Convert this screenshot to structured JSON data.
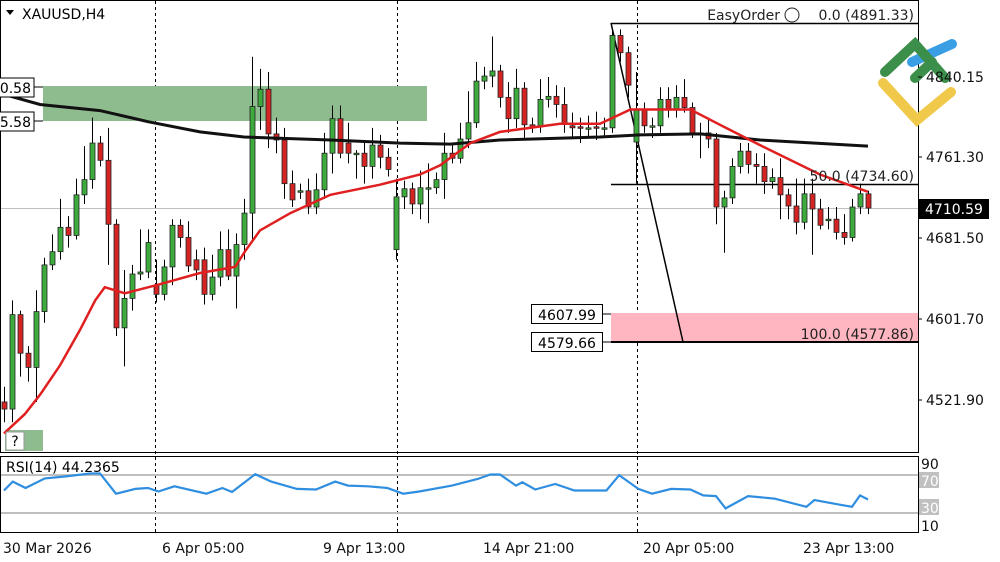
{
  "header": {
    "symbol_timeframe": "XAUUSD,H4",
    "menu_icon": "triangle-down-icon"
  },
  "price_axis": {
    "labels": [
      "4840.15",
      "4761.30",
      "4681.50",
      "4601.70",
      "4521.90"
    ],
    "current_price": "4710.59"
  },
  "time_axis": {
    "labels": [
      "30 Mar 2026",
      "6 Apr 05:00",
      "9 Apr 13:00",
      "14 Apr 21:00",
      "20 Apr 05:00",
      "23 Apr 13:00"
    ]
  },
  "zones": {
    "supply": {
      "top_label": "0.58",
      "bottom_label": "5.58",
      "color": "#8fbc8f"
    },
    "demand": {
      "top_label": "4607.99",
      "bottom_label": "4579.66",
      "color": "#ffb6c1"
    },
    "help_badge": "?"
  },
  "fibonacci": {
    "level_0": "0.0 (4891.33)",
    "level_50": "50.0 (4734.60)",
    "level_100": "100.0 (4577.86)",
    "overlay_text": "EasyOrder"
  },
  "rsi": {
    "title": "RSI(14) 44.2365",
    "scale_labels": [
      "90",
      "70",
      "30",
      "10"
    ]
  },
  "logo": {
    "colors": [
      "#3b8f4a",
      "#3a9ee4",
      "#f0c94a"
    ]
  },
  "colors": {
    "bull": "#3cab3c",
    "bear": "#d62424",
    "ma_fast": "#e02020",
    "ma_slow": "#111111",
    "rsi": "#2f8ee0"
  },
  "chart_data": {
    "type": "candlestick",
    "title": "XAUUSD,H4",
    "ylim": [
      4470.7,
      4915.9
    ],
    "x_tick_labels": [
      "30 Mar 2026",
      "6 Apr 05:00",
      "9 Apr 13:00",
      "14 Apr 21:00",
      "20 Apr 05:00",
      "23 Apr 13:00"
    ],
    "candles": [
      [
        4520,
        4535,
        4500,
        4513
      ],
      [
        4513,
        4620,
        4500,
        4606
      ],
      [
        4606,
        4610,
        4545,
        4568
      ],
      [
        4568,
        4575,
        4540,
        4554
      ],
      [
        4554,
        4630,
        4520,
        4609
      ],
      [
        4609,
        4662,
        4598,
        4655
      ],
      [
        4655,
        4685,
        4650,
        4668
      ],
      [
        4668,
        4720,
        4660,
        4692
      ],
      [
        4692,
        4703,
        4672,
        4684
      ],
      [
        4684,
        4740,
        4680,
        4724
      ],
      [
        4724,
        4772,
        4715,
        4739
      ],
      [
        4739,
        4800,
        4730,
        4775
      ],
      [
        4775,
        4782,
        4752,
        4758
      ],
      [
        4758,
        4790,
        4655,
        4695
      ],
      [
        4695,
        4700,
        4585,
        4593
      ],
      [
        4593,
        4650,
        4555,
        4622
      ],
      [
        4622,
        4655,
        4610,
        4646
      ],
      [
        4646,
        4690,
        4640,
        4648
      ],
      [
        4648,
        4690,
        4642,
        4677
      ],
      [
        4635,
        4660,
        4618,
        4626
      ],
      [
        4626,
        4660,
        4620,
        4653
      ],
      [
        4653,
        4700,
        4635,
        4694
      ],
      [
        4694,
        4700,
        4672,
        4682
      ],
      [
        4682,
        4698,
        4648,
        4654
      ],
      [
        4660,
        4670,
        4640,
        4650
      ],
      [
        4660,
        4672,
        4616,
        4626
      ],
      [
        4626,
        4665,
        4620,
        4643
      ],
      [
        4643,
        4688,
        4634,
        4670
      ],
      [
        4670,
        4690,
        4640,
        4644
      ],
      [
        4644,
        4686,
        4612,
        4675
      ],
      [
        4675,
        4720,
        4660,
        4706
      ],
      [
        4706,
        4860,
        4680,
        4811
      ],
      [
        4811,
        4848,
        4788,
        4828
      ],
      [
        4828,
        4845,
        4770,
        4784
      ],
      [
        4784,
        4800,
        4765,
        4778
      ],
      [
        4778,
        4790,
        4720,
        4735
      ],
      [
        4735,
        4748,
        4712,
        4719
      ],
      [
        4728,
        4735,
        4720,
        4728
      ],
      [
        4728,
        4740,
        4705,
        4712
      ],
      [
        4712,
        4745,
        4705,
        4729
      ],
      [
        4729,
        4785,
        4720,
        4765
      ],
      [
        4765,
        4812,
        4745,
        4799
      ],
      [
        4799,
        4812,
        4760,
        4765
      ],
      [
        4775,
        4795,
        4755,
        4765
      ],
      [
        4765,
        4768,
        4740,
        4765
      ],
      [
        4765,
        4777,
        4735,
        4752
      ],
      [
        4752,
        4790,
        4740,
        4773
      ],
      [
        4773,
        4783,
        4750,
        4761
      ],
      [
        4761,
        4770,
        4742,
        4749
      ],
      [
        4670,
        4740,
        4660,
        4722
      ],
      [
        4722,
        4738,
        4710,
        4730
      ],
      [
        4730,
        4736,
        4705,
        4715
      ],
      [
        4715,
        4748,
        4700,
        4731
      ],
      [
        4731,
        4755,
        4696,
        4731
      ],
      [
        4731,
        4746,
        4725,
        4739
      ],
      [
        4739,
        4785,
        4720,
        4765
      ],
      [
        4765,
        4775,
        4755,
        4760
      ],
      [
        4760,
        4795,
        4755,
        4779
      ],
      [
        4779,
        4826,
        4770,
        4795
      ],
      [
        4795,
        4855,
        4790,
        4836
      ],
      [
        4836,
        4850,
        4828,
        4841
      ],
      [
        4841,
        4880,
        4830,
        4846
      ],
      [
        4846,
        4852,
        4810,
        4820
      ],
      [
        4820,
        4835,
        4785,
        4799
      ],
      [
        4799,
        4848,
        4790,
        4829
      ],
      [
        4829,
        4835,
        4780,
        4793
      ],
      [
        4793,
        4800,
        4785,
        4791
      ],
      [
        4791,
        4838,
        4785,
        4818
      ],
      [
        4818,
        4840,
        4810,
        4821
      ],
      [
        4821,
        4832,
        4800,
        4813
      ],
      [
        4813,
        4830,
        4785,
        4794
      ],
      [
        4792,
        4805,
        4780,
        4790
      ],
      [
        4791,
        4800,
        4775,
        4790
      ],
      [
        4790,
        4802,
        4782,
        4790
      ],
      [
        4791,
        4806,
        4778,
        4790
      ],
      [
        4790,
        4800,
        4782,
        4790
      ],
      [
        4790,
        4885,
        4785,
        4881
      ],
      [
        4881,
        4887,
        4855,
        4864
      ],
      [
        4864,
        4870,
        4820,
        4832
      ],
      [
        4776,
        4845,
        4735,
        4808
      ],
      [
        4808,
        4815,
        4785,
        4792
      ],
      [
        4792,
        4800,
        4780,
        4792
      ],
      [
        4792,
        4830,
        4785,
        4818
      ],
      [
        4818,
        4830,
        4800,
        4808
      ],
      [
        4808,
        4832,
        4800,
        4820
      ],
      [
        4820,
        4838,
        4805,
        4810
      ],
      [
        4810,
        4815,
        4780,
        4785
      ],
      [
        4785,
        4795,
        4760,
        4785
      ],
      [
        4785,
        4800,
        4770,
        4779
      ],
      [
        4779,
        4785,
        4695,
        4712
      ],
      [
        4712,
        4728,
        4667,
        4721
      ],
      [
        4721,
        4760,
        4715,
        4752
      ],
      [
        4752,
        4775,
        4745,
        4767
      ],
      [
        4767,
        4775,
        4745,
        4754
      ],
      [
        4754,
        4765,
        4735,
        4752
      ],
      [
        4752,
        4765,
        4725,
        4737
      ],
      [
        4737,
        4750,
        4730,
        4741
      ],
      [
        4741,
        4760,
        4700,
        4724
      ],
      [
        4724,
        4730,
        4700,
        4713
      ],
      [
        4713,
        4740,
        4685,
        4697
      ],
      [
        4697,
        4740,
        4690,
        4725
      ],
      [
        4725,
        4740,
        4665,
        4710
      ],
      [
        4710,
        4720,
        4690,
        4694
      ],
      [
        4700,
        4712,
        4690,
        4700
      ],
      [
        4700,
        4712,
        4680,
        4687
      ],
      [
        4687,
        4705,
        4675,
        4682
      ],
      [
        4682,
        4720,
        4678,
        4712
      ],
      [
        4712,
        4735,
        4705,
        4725
      ],
      [
        4725,
        4728,
        4705,
        4711
      ]
    ],
    "ma_fast": [
      [
        0,
        4489
      ],
      [
        2.6,
        4508
      ],
      [
        4.5,
        4527
      ],
      [
        7,
        4556
      ],
      [
        9.5,
        4591
      ],
      [
        11.4,
        4620
      ],
      [
        12.6,
        4633
      ],
      [
        15.1,
        4627
      ],
      [
        19.5,
        4636
      ],
      [
        24.5,
        4647
      ],
      [
        28.9,
        4653
      ],
      [
        30.1,
        4668
      ],
      [
        32,
        4689
      ],
      [
        35.8,
        4706
      ],
      [
        40.8,
        4724
      ],
      [
        47,
        4734
      ],
      [
        52,
        4744
      ],
      [
        54.5,
        4753
      ],
      [
        58.3,
        4775
      ],
      [
        62,
        4786
      ],
      [
        69.5,
        4794
      ],
      [
        74.5,
        4794
      ],
      [
        78.3,
        4808
      ],
      [
        85.8,
        4808
      ],
      [
        89.5,
        4793
      ],
      [
        94.5,
        4773
      ],
      [
        102,
        4744
      ],
      [
        108,
        4727
      ]
    ],
    "ma_slow": [
      [
        -0.5,
        4824
      ],
      [
        4.5,
        4813
      ],
      [
        12,
        4807
      ],
      [
        18,
        4796
      ],
      [
        24.5,
        4786
      ],
      [
        30,
        4781
      ],
      [
        40.8,
        4778
      ],
      [
        49.5,
        4775
      ],
      [
        55.8,
        4774
      ],
      [
        62,
        4778
      ],
      [
        74.5,
        4781
      ],
      [
        79.5,
        4783
      ],
      [
        87,
        4784
      ],
      [
        94.5,
        4778
      ],
      [
        108,
        4772
      ]
    ],
    "rsi": {
      "ylim": [
        10,
        90
      ],
      "levels": [
        70,
        30
      ],
      "values": [
        [
          0,
          53.7
        ],
        [
          1.1,
          63
        ],
        [
          2.7,
          56.3
        ],
        [
          5.1,
          66.4
        ],
        [
          7.6,
          68.4
        ],
        [
          10.8,
          71.6
        ],
        [
          12,
          71.6
        ],
        [
          14,
          50.3
        ],
        [
          16.4,
          55.4
        ],
        [
          18,
          56.3
        ],
        [
          19.3,
          52.6
        ],
        [
          21.3,
          58.1
        ],
        [
          25.3,
          50.3
        ],
        [
          27.3,
          56.3
        ],
        [
          28.5,
          52.1
        ],
        [
          31.4,
          70.8
        ],
        [
          33.4,
          63
        ],
        [
          36.6,
          55.4
        ],
        [
          39,
          54.7
        ],
        [
          41.4,
          63
        ],
        [
          43,
          58.8
        ],
        [
          45.5,
          58.1
        ],
        [
          47.9,
          56.3
        ],
        [
          49.9,
          50.3
        ],
        [
          51.9,
          52.6
        ],
        [
          56,
          58.8
        ],
        [
          59.2,
          65.8
        ],
        [
          60.8,
          70.5
        ],
        [
          62,
          70.5
        ],
        [
          64,
          58.8
        ],
        [
          64.8,
          62.3
        ],
        [
          66.4,
          54.7
        ],
        [
          68.9,
          60.5
        ],
        [
          71.3,
          53.7
        ],
        [
          75.3,
          53.7
        ],
        [
          76.9,
          69.8
        ],
        [
          79.3,
          55.4
        ],
        [
          81,
          50.3
        ],
        [
          83.4,
          55.4
        ],
        [
          85.8,
          54.7
        ],
        [
          87.4,
          48.5
        ],
        [
          89,
          47.8
        ],
        [
          90.2,
          34.8
        ],
        [
          93,
          47.8
        ],
        [
          96.3,
          45.2
        ],
        [
          100.3,
          36.5
        ],
        [
          101.3,
          43.7
        ],
        [
          104.3,
          39
        ],
        [
          106,
          36.5
        ],
        [
          107,
          48.5
        ],
        [
          108,
          44.2
        ]
      ]
    }
  }
}
